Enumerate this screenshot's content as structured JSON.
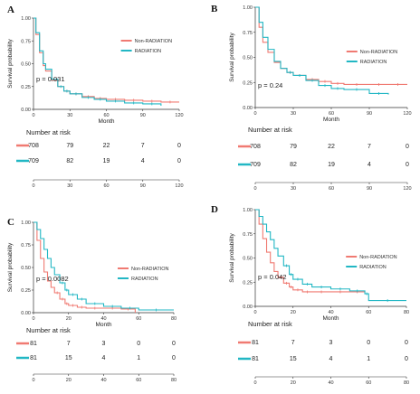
{
  "figure": {
    "x_axis_label": "Month",
    "y_axis_label": "Survival probability",
    "risk_title": "Number at risk",
    "colors": {
      "Non-RADIATION": "#f07a72",
      "RADIATION": "#22b7c4"
    }
  },
  "chart_data": [
    {
      "panel": "A",
      "type": "line",
      "xlabel": "Month",
      "ylabel": "Survival probability",
      "xlim": [
        0,
        120
      ],
      "ylim": [
        0,
        1
      ],
      "x_ticks": [
        "0",
        "30",
        "60",
        "90",
        "120"
      ],
      "y_ticks": [
        "0.00",
        "0.25",
        "0.50",
        "0.75",
        "1.00"
      ],
      "legend": [
        "Non-RADIATION",
        "RADIATION"
      ],
      "legend_position": "right",
      "p_value": "p = 0.031",
      "series": [
        {
          "name": "Non-RADIATION",
          "color": "#f07a72",
          "x": [
            0,
            2,
            5,
            8,
            10,
            15,
            20,
            25,
            30,
            40,
            50,
            60,
            75,
            90,
            105,
            120
          ],
          "y": [
            1.0,
            0.82,
            0.62,
            0.48,
            0.42,
            0.32,
            0.25,
            0.2,
            0.17,
            0.14,
            0.12,
            0.11,
            0.1,
            0.09,
            0.08,
            0.08
          ]
        },
        {
          "name": "RADIATION",
          "color": "#22b7c4",
          "x": [
            0,
            2,
            5,
            8,
            10,
            15,
            20,
            25,
            30,
            40,
            50,
            60,
            75,
            90,
            105
          ],
          "y": [
            1.0,
            0.84,
            0.64,
            0.5,
            0.44,
            0.33,
            0.25,
            0.2,
            0.17,
            0.13,
            0.11,
            0.09,
            0.07,
            0.06,
            0.04
          ]
        }
      ],
      "risk_table": {
        "title": "Number at risk",
        "times": [
          "0",
          "30",
          "60",
          "90",
          "120"
        ],
        "rows": [
          {
            "group": "Non-RADIATION",
            "values": [
              "708",
              "79",
              "22",
              "7",
              "0"
            ]
          },
          {
            "group": "RADIATION",
            "values": [
              "709",
              "82",
              "19",
              "4",
              "0"
            ]
          }
        ]
      }
    },
    {
      "panel": "B",
      "type": "line",
      "xlabel": "Month",
      "ylabel": "Survival probability",
      "xlim": [
        0,
        120
      ],
      "ylim": [
        0,
        1
      ],
      "x_ticks": [
        "0",
        "30",
        "60",
        "90",
        "120"
      ],
      "y_ticks": [
        "0.00",
        "0.25",
        "0.50",
        "0.75",
        "1.00"
      ],
      "legend": [
        "Non-RADIATION",
        "RADIATION"
      ],
      "legend_position": "right",
      "p_value": "p = 0.24",
      "series": [
        {
          "name": "Non-RADIATION",
          "color": "#f07a72",
          "x": [
            0,
            3,
            6,
            10,
            15,
            20,
            25,
            30,
            40,
            50,
            60,
            70,
            90,
            105,
            120
          ],
          "y": [
            1.0,
            0.8,
            0.65,
            0.55,
            0.45,
            0.39,
            0.35,
            0.32,
            0.28,
            0.26,
            0.24,
            0.23,
            0.23,
            0.23,
            0.23
          ]
        },
        {
          "name": "RADIATION",
          "color": "#22b7c4",
          "x": [
            0,
            3,
            6,
            10,
            15,
            20,
            25,
            30,
            40,
            50,
            60,
            70,
            90,
            105
          ],
          "y": [
            1.0,
            0.85,
            0.7,
            0.58,
            0.46,
            0.39,
            0.35,
            0.32,
            0.27,
            0.22,
            0.19,
            0.18,
            0.14,
            0.13
          ]
        }
      ],
      "risk_table": {
        "title": "Number at risk",
        "times": [
          "0",
          "30",
          "60",
          "90",
          "120"
        ],
        "rows": [
          {
            "group": "Non-RADIATION",
            "values": [
              "708",
              "79",
              "22",
              "7",
              "0"
            ]
          },
          {
            "group": "RADIATION",
            "values": [
              "709",
              "82",
              "19",
              "4",
              "0"
            ]
          }
        ]
      }
    },
    {
      "panel": "C",
      "type": "line",
      "xlabel": "Month",
      "ylabel": "Survival probability",
      "xlim": [
        0,
        80
      ],
      "ylim": [
        0,
        1
      ],
      "x_ticks": [
        "0",
        "20",
        "40",
        "60",
        "80"
      ],
      "y_ticks": [
        "0.00",
        "0.25",
        "0.50",
        "0.75",
        "1.00"
      ],
      "legend": [
        "Non-RADIATION",
        "RADIATION"
      ],
      "legend_position": "right",
      "p_value": "p = 0.0082",
      "series": [
        {
          "name": "Non-RADIATION",
          "color": "#f07a72",
          "x": [
            0,
            2,
            4,
            6,
            8,
            10,
            12,
            15,
            18,
            20,
            25,
            30,
            40,
            50,
            58
          ],
          "y": [
            1.0,
            0.8,
            0.6,
            0.45,
            0.35,
            0.28,
            0.22,
            0.15,
            0.1,
            0.08,
            0.06,
            0.05,
            0.05,
            0.04,
            0.0
          ]
        },
        {
          "name": "RADIATION",
          "color": "#22b7c4",
          "x": [
            0,
            2,
            4,
            6,
            8,
            10,
            12,
            15,
            18,
            20,
            25,
            30,
            40,
            50,
            60,
            80
          ],
          "y": [
            1.0,
            0.92,
            0.82,
            0.7,
            0.6,
            0.5,
            0.42,
            0.33,
            0.25,
            0.2,
            0.15,
            0.1,
            0.07,
            0.05,
            0.03,
            0.03
          ]
        }
      ],
      "risk_table": {
        "title": "Number at risk",
        "times": [
          "0",
          "20",
          "40",
          "60",
          "80"
        ],
        "rows": [
          {
            "group": "Non-RADIATION",
            "values": [
              "81",
              "7",
              "3",
              "0",
              "0"
            ]
          },
          {
            "group": "RADIATION",
            "values": [
              "81",
              "15",
              "4",
              "1",
              "0"
            ]
          }
        ]
      }
    },
    {
      "panel": "D",
      "type": "line",
      "xlabel": "Month",
      "ylabel": "Survival probability",
      "xlim": [
        0,
        80
      ],
      "ylim": [
        0,
        1
      ],
      "x_ticks": [
        "0",
        "20",
        "40",
        "60",
        "80"
      ],
      "y_ticks": [
        "0.00",
        "0.25",
        "0.50",
        "0.75",
        "1.00"
      ],
      "legend": [
        "Non-RADIATION",
        "RADIATION"
      ],
      "legend_position": "right",
      "p_value": "p = 0.042",
      "series": [
        {
          "name": "Non-RADIATION",
          "color": "#f07a72",
          "x": [
            0,
            2,
            4,
            6,
            8,
            10,
            12,
            15,
            18,
            20,
            25,
            30,
            40,
            50,
            58
          ],
          "y": [
            1.0,
            0.85,
            0.7,
            0.56,
            0.45,
            0.36,
            0.3,
            0.24,
            0.2,
            0.17,
            0.15,
            0.15,
            0.15,
            0.15,
            0.15
          ]
        },
        {
          "name": "RADIATION",
          "color": "#22b7c4",
          "x": [
            0,
            2,
            4,
            6,
            8,
            10,
            12,
            15,
            18,
            20,
            25,
            30,
            40,
            50,
            58,
            60,
            80
          ],
          "y": [
            1.0,
            0.93,
            0.85,
            0.77,
            0.69,
            0.6,
            0.52,
            0.42,
            0.33,
            0.28,
            0.23,
            0.2,
            0.18,
            0.16,
            0.13,
            0.06,
            0.06
          ]
        }
      ],
      "risk_table": {
        "title": "Number at risk",
        "times": [
          "0",
          "20",
          "40",
          "60",
          "80"
        ],
        "rows": [
          {
            "group": "Non-RADIATION",
            "values": [
              "81",
              "7",
              "3",
              "0",
              "0"
            ]
          },
          {
            "group": "RADIATION",
            "values": [
              "81",
              "15",
              "4",
              "1",
              "0"
            ]
          }
        ]
      }
    }
  ]
}
